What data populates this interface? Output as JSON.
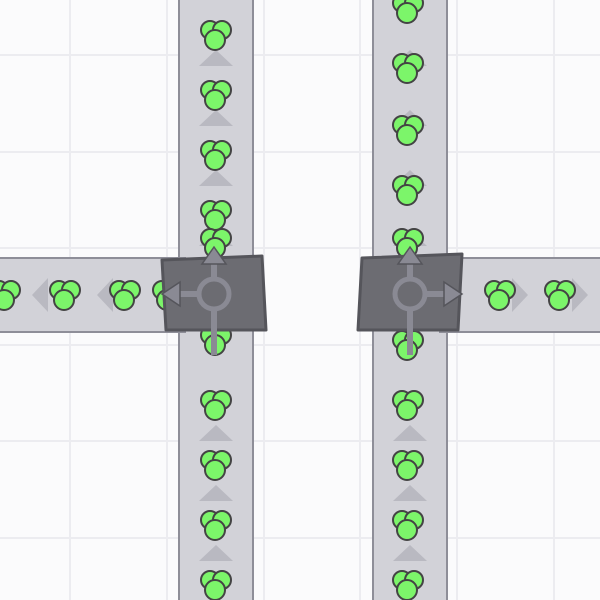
{
  "game": {
    "entities": [
      {
        "type": "belt",
        "orientation": "vertical",
        "direction": "up"
      },
      {
        "type": "belt",
        "orientation": "vertical",
        "direction": "up"
      },
      {
        "type": "belt",
        "orientation": "horizontal",
        "direction": "left"
      },
      {
        "type": "belt",
        "orientation": "horizontal",
        "direction": "right"
      },
      {
        "type": "splitter",
        "outputs": [
          "up",
          "left"
        ]
      },
      {
        "type": "splitter",
        "outputs": [
          "up",
          "right"
        ]
      }
    ],
    "item": {
      "shape": "three-circle-cluster",
      "color": "#7cf56a"
    }
  },
  "colors": {
    "background": "#fbfbfc",
    "grid": "#ececf0",
    "belt": "#d2d2d8",
    "belt_border": "#8e8e98",
    "belt_arrow": "#b9b9c1",
    "splitter": "#6c6c72",
    "splitter_border": "#55555b",
    "splitter_arrow": "#8a8a94",
    "item": "#7cf56a",
    "item_border": "#444444"
  }
}
